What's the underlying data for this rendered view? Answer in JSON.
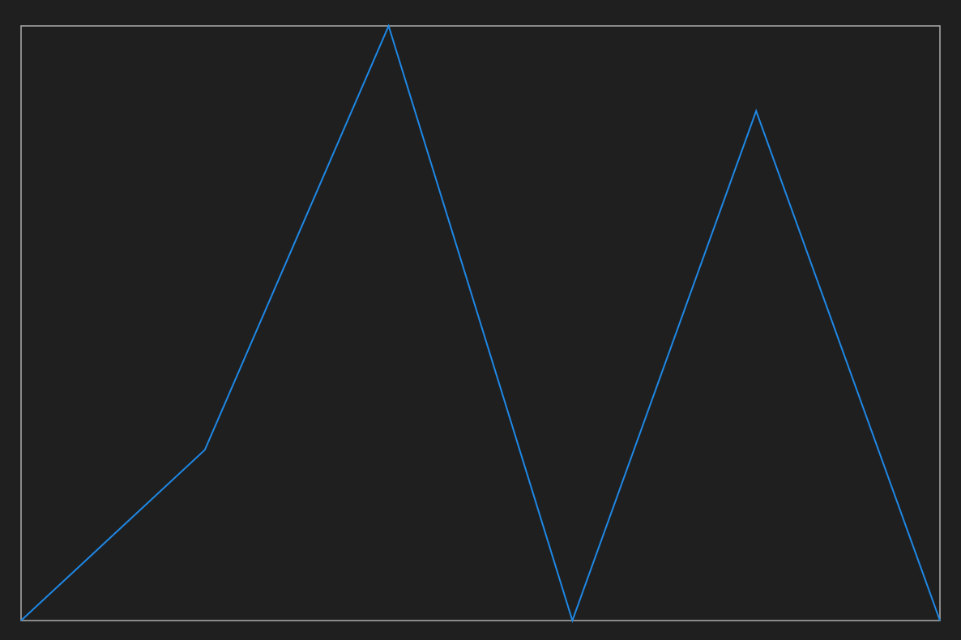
{
  "colors": {
    "background": "#1f1f20",
    "frame": "#a6a6a6",
    "line": "#1e88e5"
  },
  "chart_data": {
    "type": "line",
    "title": "",
    "xlabel": "",
    "ylabel": "",
    "x": [
      0,
      1,
      2,
      3,
      4,
      5
    ],
    "series": [
      {
        "values": [
          0,
          2.87,
          10,
          0,
          8.57,
          0
        ]
      }
    ],
    "xlim": [
      0,
      5
    ],
    "ylim": [
      0,
      10
    ],
    "grid": false,
    "ticks_visible": false,
    "legend": "none"
  }
}
